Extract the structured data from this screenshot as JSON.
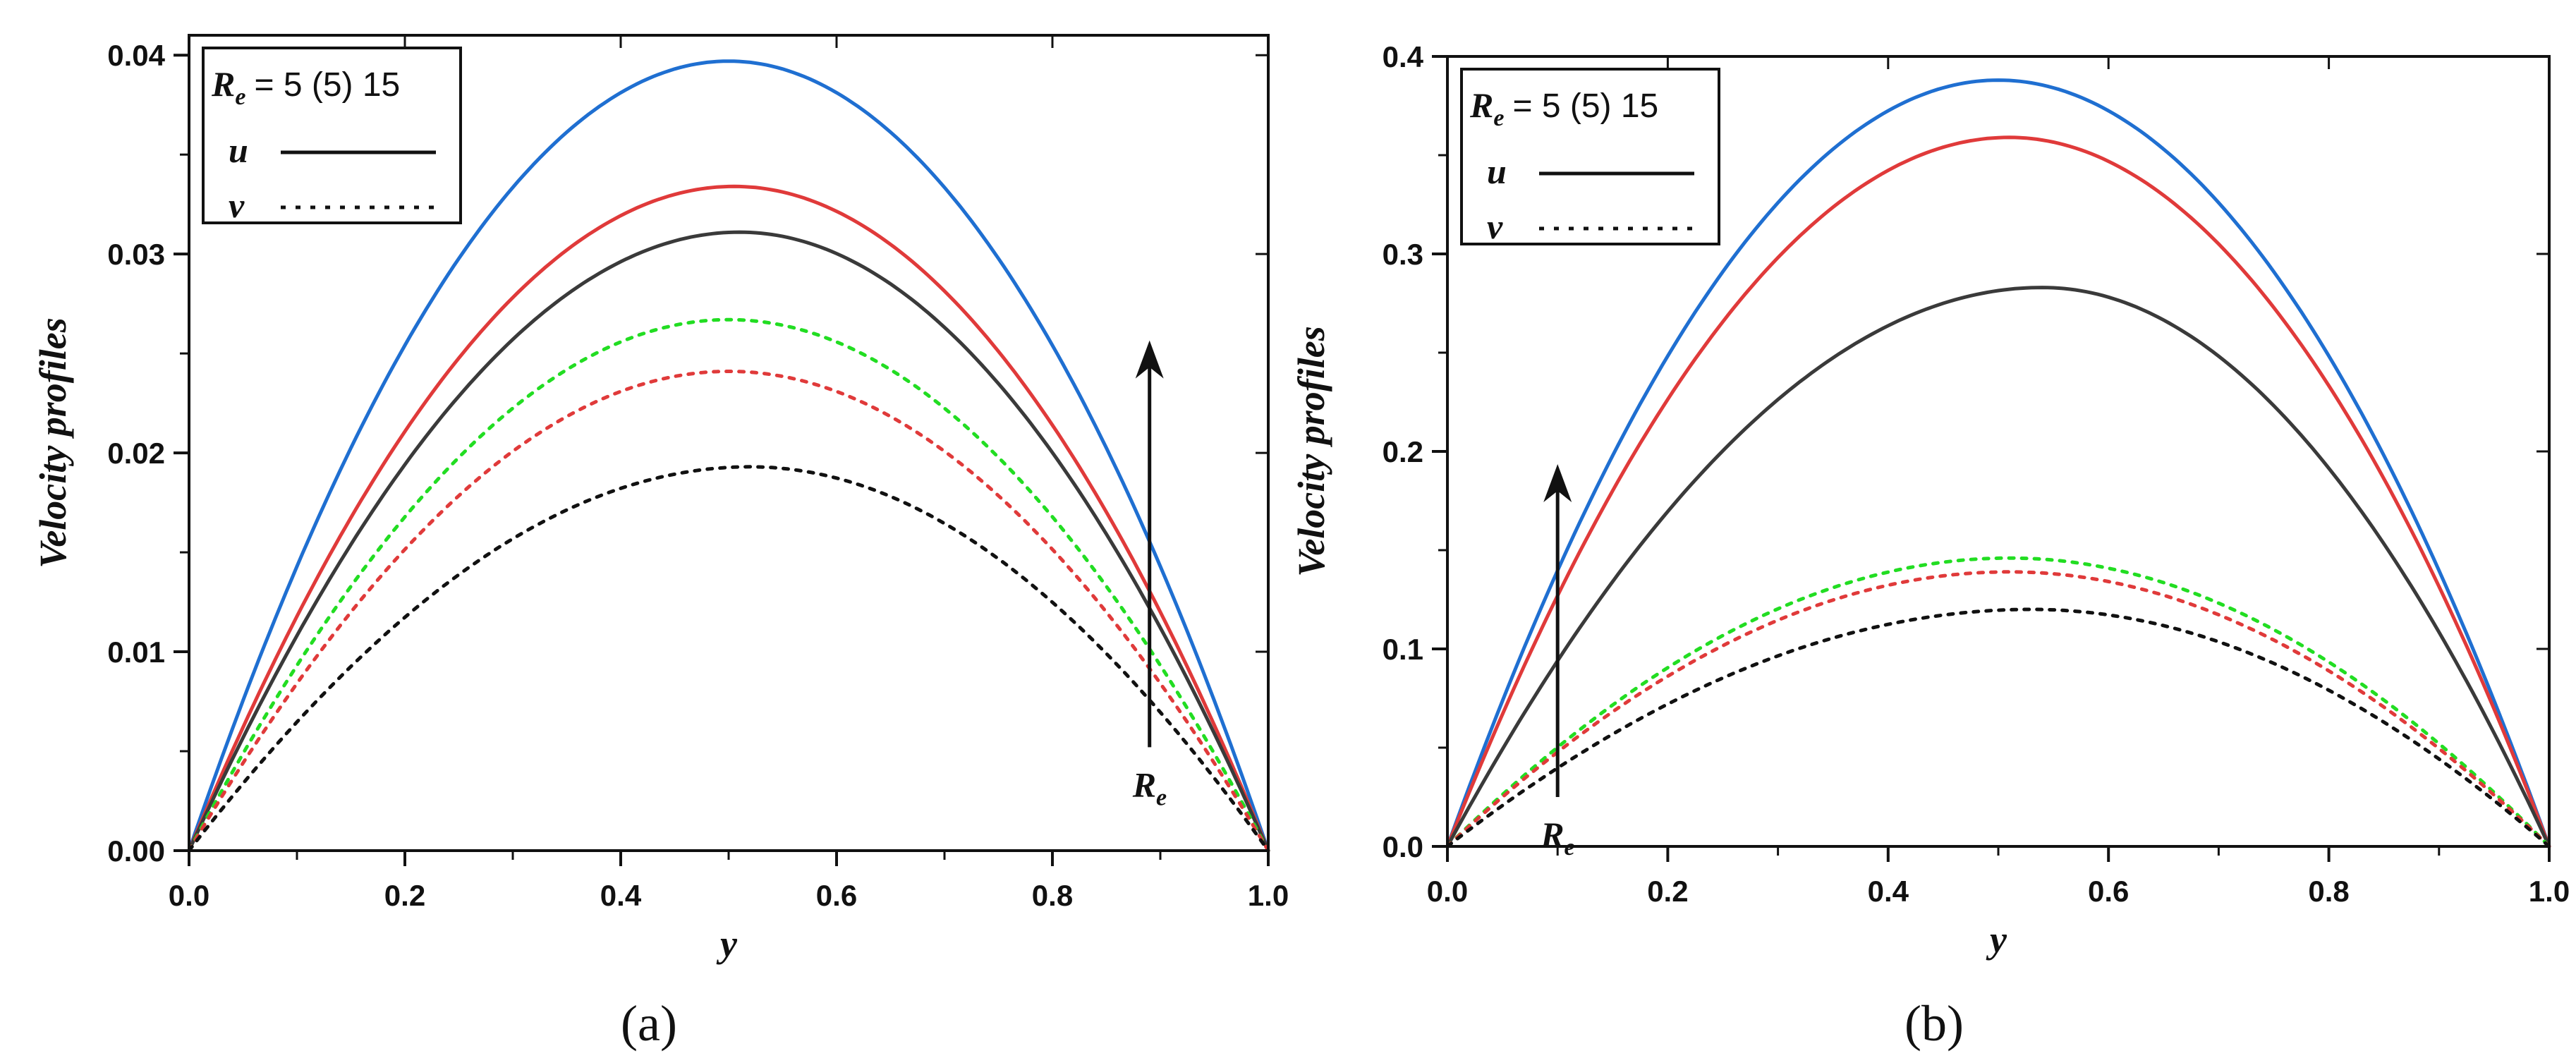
{
  "chart_data": [
    {
      "type": "line",
      "panel_label": "(a)",
      "title": "",
      "xlabel": "y",
      "ylabel": "Velocity profiles",
      "xlim": [
        0.0,
        1.0
      ],
      "ylim": [
        0.0,
        0.041
      ],
      "xticks": [
        "0.0",
        "0.2",
        "0.4",
        "0.6",
        "0.8",
        "1.0"
      ],
      "xtick_values": [
        0.0,
        0.2,
        0.4,
        0.6,
        0.8,
        1.0
      ],
      "yticks": [
        "0.00",
        "0.01",
        "0.02",
        "0.03",
        "0.04"
      ],
      "ytick_values": [
        0.0,
        0.01,
        0.02,
        0.03,
        0.04
      ],
      "grid": false,
      "legend": {
        "position": "top-left",
        "title_symbol": "R",
        "title_subscript": "e",
        "title_text": "= 5 (5) 15",
        "entries": [
          {
            "symbol": "u",
            "style": "solid"
          },
          {
            "symbol": "v",
            "style": "dotted"
          }
        ]
      },
      "annotation": {
        "symbol": "R",
        "subscript": "e",
        "x": 0.89,
        "y_from": 0.0052,
        "y_to": 0.0253
      },
      "series": [
        {
          "name": "u, Re = 15",
          "style": "solid",
          "color": "#1f6fd1",
          "peak": 0.0397,
          "peak_x": 0.5,
          "shape": 0.0
        },
        {
          "name": "u, Re = 10",
          "style": "solid",
          "color": "#e03a3a",
          "peak": 0.0334,
          "peak_x": 0.505,
          "shape": 0.08
        },
        {
          "name": "u, Re = 5",
          "style": "solid",
          "color": "#3a3a3a",
          "peak": 0.0311,
          "peak_x": 0.51,
          "shape": 0.12
        },
        {
          "name": "v, Re = 15",
          "style": "dotted",
          "color": "#22dd22",
          "peak": 0.0267,
          "peak_x": 0.5,
          "shape": 0.22
        },
        {
          "name": "v, Re = 10",
          "style": "dotted",
          "color": "#e03a3a",
          "peak": 0.0241,
          "peak_x": 0.5,
          "shape": 0.22
        },
        {
          "name": "v, Re = 5",
          "style": "dotted",
          "color": "#111111",
          "peak": 0.0193,
          "peak_x": 0.52,
          "shape": 0.25
        }
      ]
    },
    {
      "type": "line",
      "panel_label": "(b)",
      "title": "",
      "xlabel": "y",
      "ylabel": "Velocity profiles",
      "xlim": [
        0.0,
        1.0
      ],
      "ylim": [
        0.0,
        0.4
      ],
      "xticks": [
        "0.0",
        "0.2",
        "0.4",
        "0.6",
        "0.8",
        "1.0"
      ],
      "xtick_values": [
        0.0,
        0.2,
        0.4,
        0.6,
        0.8,
        1.0
      ],
      "yticks": [
        "0.0",
        "0.1",
        "0.2",
        "0.3",
        "0.4"
      ],
      "ytick_values": [
        0.0,
        0.1,
        0.2,
        0.3,
        0.4
      ],
      "grid": false,
      "legend": {
        "position": "top-left",
        "title_symbol": "R",
        "title_subscript": "e",
        "title_text": "= 5 (5) 15",
        "entries": [
          {
            "symbol": "u",
            "style": "solid"
          },
          {
            "symbol": "v",
            "style": "dotted"
          }
        ]
      },
      "annotation": {
        "symbol": "R",
        "subscript": "e",
        "x": 0.1,
        "y_from": 0.025,
        "y_to": 0.19
      },
      "series": [
        {
          "name": "u, Re = 15",
          "style": "solid",
          "color": "#1f6fd1",
          "peak": 0.388,
          "peak_x": 0.5,
          "shape": 0.0
        },
        {
          "name": "u, Re = 10",
          "style": "solid",
          "color": "#e03a3a",
          "peak": 0.359,
          "peak_x": 0.51,
          "shape": 0.0
        },
        {
          "name": "u, Re = 5",
          "style": "solid",
          "color": "#3a3a3a",
          "peak": 0.283,
          "peak_x": 0.54,
          "shape": 0.08
        },
        {
          "name": "v, Re = 15",
          "style": "dotted",
          "color": "#22dd22",
          "peak": 0.146,
          "peak_x": 0.51,
          "shape": 0.2
        },
        {
          "name": "v, Re = 10",
          "style": "dotted",
          "color": "#e03a3a",
          "peak": 0.139,
          "peak_x": 0.51,
          "shape": 0.2
        },
        {
          "name": "v, Re = 5",
          "style": "dotted",
          "color": "#111111",
          "peak": 0.12,
          "peak_x": 0.53,
          "shape": 0.22
        }
      ]
    }
  ]
}
